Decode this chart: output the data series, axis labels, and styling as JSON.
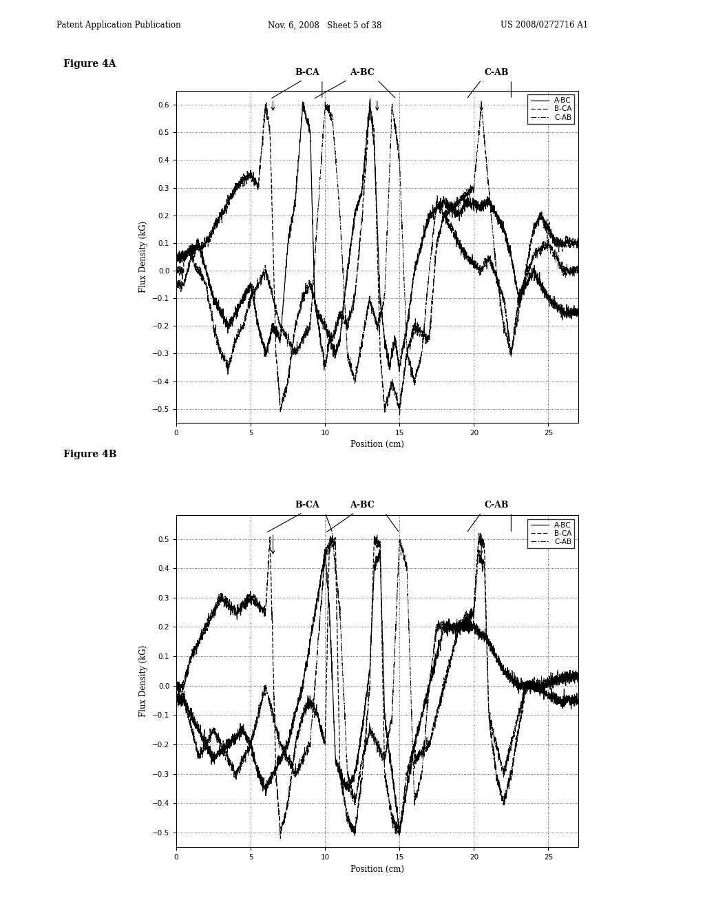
{
  "header_left": "Patent Application Publication",
  "header_center": "Nov. 6, 2008   Sheet 5 of 38",
  "header_right": "US 2008/0272716 A1",
  "fig4A_title": "Figure 4A",
  "fig4B_title": "Figure 4B",
  "xlabel": "Position (cm)",
  "ylabel": "Flux Density (kG)",
  "legend_entries": [
    "A-BC",
    "B-CA",
    "C-AB"
  ],
  "bg_color": "#ffffff"
}
